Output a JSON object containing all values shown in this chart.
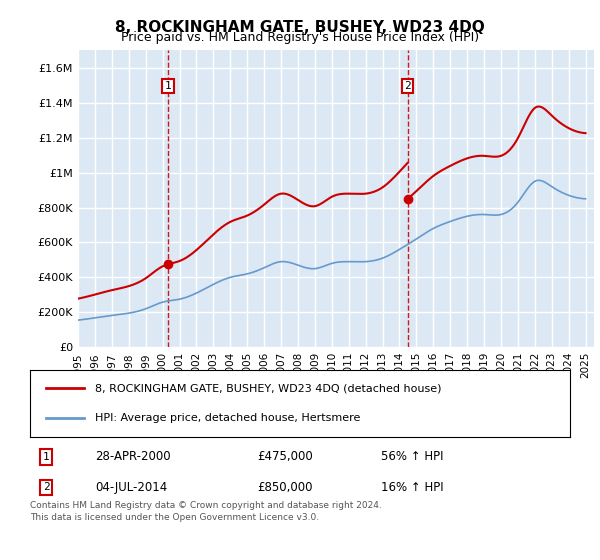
{
  "title": "8, ROCKINGHAM GATE, BUSHEY, WD23 4DQ",
  "subtitle": "Price paid vs. HM Land Registry's House Price Index (HPI)",
  "ylabel_ticks": [
    "£0",
    "£200K",
    "£400K",
    "£600K",
    "£800K",
    "£1M",
    "£1.2M",
    "£1.4M",
    "£1.6M"
  ],
  "ytick_values": [
    0,
    200000,
    400000,
    600000,
    800000,
    1000000,
    1200000,
    1400000,
    1600000
  ],
  "ylim": [
    0,
    1700000
  ],
  "xlim_start": 1995.0,
  "xlim_end": 2025.5,
  "background_color": "#dce9f5",
  "plot_bg": "#dce9f5",
  "grid_color": "#ffffff",
  "hpi_color": "#6699cc",
  "price_color": "#cc0000",
  "transaction1_date": 2000.32,
  "transaction1_price": 475000,
  "transaction2_date": 2014.5,
  "transaction2_price": 850000,
  "legend_price_label": "8, ROCKINGHAM GATE, BUSHEY, WD23 4DQ (detached house)",
  "legend_hpi_label": "HPI: Average price, detached house, Hertsmere",
  "note1_num": "1",
  "note1_date": "28-APR-2000",
  "note1_price": "£475,000",
  "note1_pct": "56% ↑ HPI",
  "note2_num": "2",
  "note2_date": "04-JUL-2014",
  "note2_price": "£850,000",
  "note2_pct": "16% ↑ HPI",
  "footer": "Contains HM Land Registry data © Crown copyright and database right 2024.\nThis data is licensed under the Open Government Licence v3.0.",
  "xtick_years": [
    1995,
    1996,
    1997,
    1998,
    1999,
    2000,
    2001,
    2002,
    2003,
    2004,
    2005,
    2006,
    2007,
    2008,
    2009,
    2010,
    2011,
    2012,
    2013,
    2014,
    2015,
    2016,
    2017,
    2018,
    2019,
    2020,
    2021,
    2022,
    2023,
    2024,
    2025
  ]
}
